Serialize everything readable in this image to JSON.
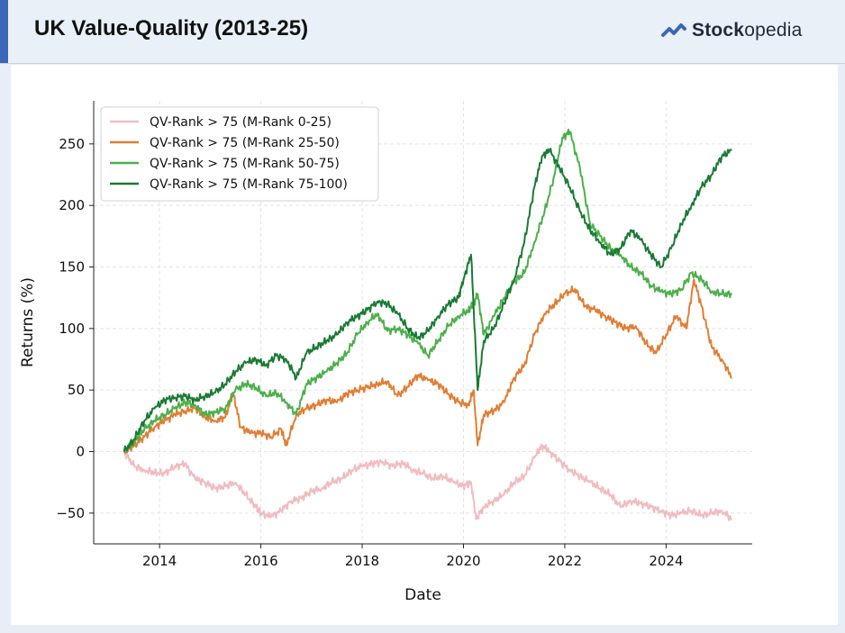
{
  "header": {
    "title": "UK Value-Quality (2013-25)",
    "brand_left": "Stock",
    "brand_right": "opedia",
    "brand_icon": "stockopedia-logo-icon"
  },
  "chart_data": {
    "type": "line",
    "title": "",
    "xlabel": "Date",
    "ylabel": "Returns (%)",
    "xlim": [
      2012.7,
      2025.7
    ],
    "ylim": [
      -75,
      285
    ],
    "x_ticks": [
      2014,
      2016,
      2018,
      2020,
      2022,
      2024
    ],
    "x_tick_labels": [
      "2014",
      "2016",
      "2018",
      "2020",
      "2022",
      "2024"
    ],
    "y_ticks": [
      -50,
      0,
      50,
      100,
      150,
      200,
      250
    ],
    "y_tick_labels": [
      "−50",
      "0",
      "50",
      "100",
      "150",
      "200",
      "250"
    ],
    "grid": true,
    "legend_position": "top-left",
    "series": [
      {
        "name": "QV-Rank > 75 (M-Rank 0-25)",
        "color": "#f1bcc0",
        "x": [
          2013.3,
          2013.5,
          2013.7,
          2013.9,
          2014.1,
          2014.3,
          2014.5,
          2014.7,
          2014.9,
          2015.1,
          2015.3,
          2015.5,
          2015.7,
          2015.9,
          2016.0,
          2016.2,
          2016.4,
          2016.6,
          2016.8,
          2017.0,
          2017.2,
          2017.4,
          2017.6,
          2017.8,
          2018.0,
          2018.2,
          2018.4,
          2018.6,
          2018.8,
          2019.0,
          2019.2,
          2019.4,
          2019.6,
          2019.8,
          2020.0,
          2020.15,
          2020.25,
          2020.4,
          2020.6,
          2020.8,
          2021.0,
          2021.2,
          2021.4,
          2021.55,
          2021.7,
          2021.9,
          2022.1,
          2022.3,
          2022.5,
          2022.7,
          2022.9,
          2023.1,
          2023.3,
          2023.5,
          2023.7,
          2023.9,
          2024.1,
          2024.3,
          2024.5,
          2024.7,
          2024.9,
          2025.1,
          2025.3
        ],
        "y": [
          0,
          -12,
          -15,
          -17,
          -18,
          -12,
          -10,
          -22,
          -25,
          -30,
          -28,
          -25,
          -35,
          -45,
          -50,
          -53,
          -48,
          -40,
          -38,
          -32,
          -30,
          -25,
          -22,
          -15,
          -12,
          -10,
          -8,
          -12,
          -9,
          -15,
          -18,
          -22,
          -20,
          -25,
          -28,
          -25,
          -55,
          -45,
          -40,
          -35,
          -25,
          -20,
          -5,
          5,
          0,
          -8,
          -15,
          -20,
          -25,
          -30,
          -35,
          -45,
          -40,
          -42,
          -45,
          -48,
          -52,
          -50,
          -48,
          -52,
          -50,
          -48,
          -55
        ]
      },
      {
        "name": "QV-Rank > 75 (M-Rank 25-50)",
        "color": "#e07e35",
        "x": [
          2013.3,
          2013.5,
          2013.7,
          2013.9,
          2014.1,
          2014.3,
          2014.5,
          2014.7,
          2014.9,
          2015.1,
          2015.3,
          2015.45,
          2015.6,
          2015.8,
          2016.0,
          2016.2,
          2016.4,
          2016.5,
          2016.7,
          2016.9,
          2017.1,
          2017.3,
          2017.5,
          2017.7,
          2017.9,
          2018.1,
          2018.3,
          2018.5,
          2018.7,
          2018.9,
          2019.1,
          2019.3,
          2019.5,
          2019.7,
          2019.9,
          2020.1,
          2020.2,
          2020.28,
          2020.4,
          2020.6,
          2020.8,
          2021.0,
          2021.2,
          2021.4,
          2021.6,
          2021.8,
          2022.0,
          2022.2,
          2022.4,
          2022.6,
          2022.8,
          2023.0,
          2023.2,
          2023.4,
          2023.6,
          2023.8,
          2024.0,
          2024.2,
          2024.4,
          2024.55,
          2024.7,
          2024.9,
          2025.1,
          2025.3
        ],
        "y": [
          0,
          5,
          12,
          20,
          25,
          30,
          33,
          35,
          28,
          25,
          28,
          48,
          20,
          15,
          15,
          12,
          18,
          5,
          30,
          35,
          38,
          42,
          40,
          47,
          50,
          52,
          55,
          57,
          45,
          53,
          62,
          58,
          55,
          47,
          40,
          38,
          50,
          5,
          30,
          33,
          40,
          60,
          70,
          95,
          112,
          120,
          128,
          132,
          118,
          115,
          110,
          105,
          100,
          102,
          88,
          80,
          95,
          110,
          100,
          140,
          118,
          85,
          75,
          60
        ]
      },
      {
        "name": "QV-Rank > 75 (M-Rank 50-75)",
        "color": "#4daf4a",
        "x": [
          2013.3,
          2013.5,
          2013.7,
          2013.9,
          2014.1,
          2014.3,
          2014.5,
          2014.7,
          2014.9,
          2015.1,
          2015.3,
          2015.5,
          2015.7,
          2015.9,
          2016.1,
          2016.3,
          2016.5,
          2016.7,
          2016.9,
          2017.1,
          2017.3,
          2017.5,
          2017.7,
          2017.9,
          2018.1,
          2018.3,
          2018.5,
          2018.7,
          2018.9,
          2019.1,
          2019.3,
          2019.5,
          2019.7,
          2019.9,
          2020.1,
          2020.2,
          2020.28,
          2020.4,
          2020.6,
          2020.8,
          2021.0,
          2021.2,
          2021.4,
          2021.6,
          2021.8,
          2021.95,
          2022.1,
          2022.3,
          2022.5,
          2022.7,
          2022.9,
          2023.1,
          2023.3,
          2023.5,
          2023.7,
          2023.9,
          2024.1,
          2024.3,
          2024.5,
          2024.7,
          2024.9,
          2025.1,
          2025.3
        ],
        "y": [
          0,
          8,
          18,
          25,
          30,
          35,
          40,
          38,
          30,
          32,
          35,
          50,
          55,
          52,
          45,
          48,
          40,
          30,
          55,
          60,
          65,
          72,
          80,
          95,
          105,
          112,
          98,
          100,
          95,
          88,
          78,
          90,
          102,
          110,
          115,
          120,
          128,
          95,
          110,
          125,
          138,
          145,
          170,
          195,
          225,
          255,
          260,
          230,
          185,
          175,
          165,
          160,
          150,
          145,
          135,
          130,
          128,
          132,
          145,
          140,
          130,
          128,
          128
        ]
      },
      {
        "name": "QV-Rank > 75 (M-Rank 75-100)",
        "color": "#1a7a34",
        "x": [
          2013.3,
          2013.5,
          2013.7,
          2013.9,
          2014.1,
          2014.3,
          2014.5,
          2014.7,
          2014.9,
          2015.1,
          2015.3,
          2015.5,
          2015.7,
          2015.9,
          2016.1,
          2016.3,
          2016.5,
          2016.7,
          2016.9,
          2017.1,
          2017.3,
          2017.5,
          2017.7,
          2017.9,
          2018.1,
          2018.3,
          2018.5,
          2018.7,
          2018.9,
          2019.1,
          2019.3,
          2019.5,
          2019.7,
          2019.9,
          2020.0,
          2020.15,
          2020.28,
          2020.4,
          2020.6,
          2020.8,
          2021.0,
          2021.2,
          2021.4,
          2021.55,
          2021.7,
          2021.9,
          2022.1,
          2022.3,
          2022.5,
          2022.7,
          2022.9,
          2023.1,
          2023.3,
          2023.5,
          2023.7,
          2023.9,
          2024.1,
          2024.3,
          2024.5,
          2024.7,
          2024.9,
          2025.1,
          2025.3
        ],
        "y": [
          0,
          10,
          25,
          35,
          42,
          44,
          45,
          42,
          45,
          48,
          55,
          65,
          72,
          75,
          70,
          78,
          75,
          60,
          80,
          85,
          90,
          95,
          105,
          110,
          115,
          122,
          120,
          112,
          100,
          92,
          98,
          110,
          120,
          125,
          140,
          160,
          50,
          90,
          100,
          120,
          140,
          170,
          215,
          240,
          245,
          230,
          215,
          195,
          180,
          170,
          160,
          165,
          180,
          172,
          160,
          150,
          165,
          185,
          200,
          215,
          225,
          240,
          245
        ]
      }
    ]
  }
}
